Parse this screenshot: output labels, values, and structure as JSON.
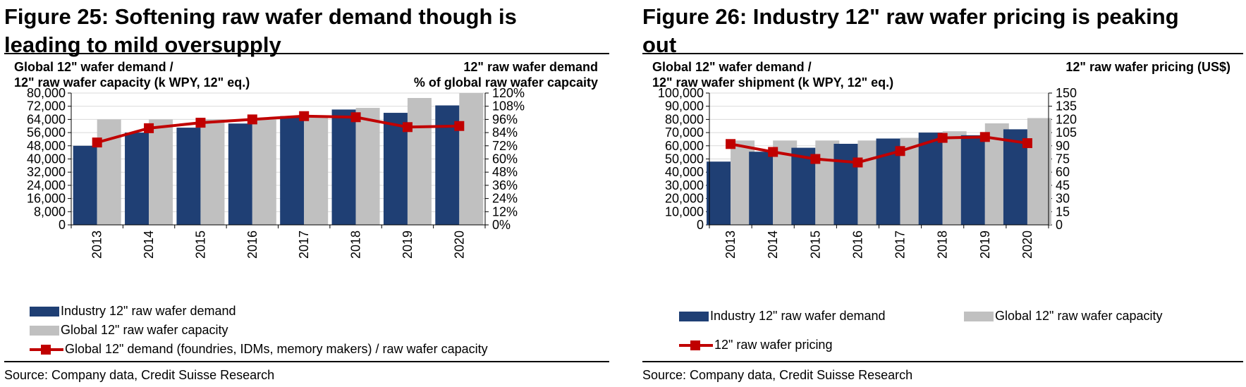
{
  "figures": [
    {
      "title_line1": "Figure 25: Softening raw wafer demand though is",
      "title_line2": "leading to mild oversupply",
      "left_axis_title_line1": "Global 12\" wafer demand /",
      "left_axis_title_line2": "12\" raw wafer capacity (k WPY, 12\" eq.)",
      "right_axis_title_line1": "12\" raw wafer demand",
      "right_axis_title_line2": "% of global raw wafer capcaity",
      "legend": {
        "demand": "Industry 12\" raw wafer demand",
        "capacity": "Global 12\" raw wafer capacity",
        "line": "Global 12\" demand (foundries, IDMs, memory makers) / raw wafer capacity"
      },
      "source": "Source: Company data, Credit Suisse Research"
    },
    {
      "title_line1": "Figure 26: Industry 12\" raw wafer pricing is peaking",
      "title_line2": "out",
      "left_axis_title_line1": "Global 12\" wafer demand /",
      "left_axis_title_line2": "12\" raw wafer shipment (k WPY, 12\" eq.)",
      "right_axis_title_line1": "12\" raw wafer pricing (US$)",
      "right_axis_title_line2": "",
      "legend": {
        "demand": "Industry 12\" raw wafer demand",
        "capacity": "Global 12\" raw wafer capacity",
        "line": "12\" raw wafer pricing"
      },
      "source": "Source: Company data, Credit Suisse Research"
    }
  ],
  "chart_data": [
    {
      "type": "bar",
      "categories": [
        "2013",
        "2014",
        "2015",
        "2016",
        "2017",
        "2018",
        "2019",
        "2020"
      ],
      "series": [
        {
          "name": "Industry 12\" raw wafer demand",
          "axis": "left",
          "color": "#1f3f74",
          "values": [
            48000,
            56000,
            59000,
            61500,
            66000,
            70000,
            68000,
            72500
          ]
        },
        {
          "name": "Global 12\" raw wafer capacity",
          "axis": "left",
          "color": "#c0c0c0",
          "values": [
            64000,
            64000,
            64000,
            64000,
            66000,
            71000,
            77000,
            80000
          ]
        },
        {
          "name": "Global 12\" demand (foundries, IDMs, memory makers) / raw wafer capacity",
          "type": "line",
          "axis": "right",
          "color": "#c00000",
          "values": [
            75,
            88,
            93,
            96,
            99,
            98,
            89,
            90
          ]
        }
      ],
      "left_axis": {
        "min": 0,
        "max": 80000,
        "step": 8000,
        "format": "thousands",
        "ticks": [
          "0",
          "8,000",
          "16,000",
          "24,000",
          "32,000",
          "40,000",
          "48,000",
          "56,000",
          "64,000",
          "72,000",
          "80,000"
        ]
      },
      "right_axis": {
        "min": 0,
        "max": 120,
        "step": 12,
        "format": "percent",
        "ticks": [
          "0%",
          "12%",
          "24%",
          "36%",
          "48%",
          "60%",
          "72%",
          "84%",
          "96%",
          "108%",
          "120%"
        ]
      },
      "grid": true,
      "legend_position": "bottom-left"
    },
    {
      "type": "bar",
      "categories": [
        "2013",
        "2014",
        "2015",
        "2016",
        "2017",
        "2018",
        "2019",
        "2020"
      ],
      "series": [
        {
          "name": "Industry 12\" raw wafer demand",
          "axis": "left",
          "color": "#1f3f74",
          "values": [
            48000,
            55500,
            58500,
            61500,
            65500,
            70000,
            68000,
            72500
          ]
        },
        {
          "name": "Global 12\" raw wafer capacity",
          "axis": "left",
          "color": "#c0c0c0",
          "values": [
            64000,
            64000,
            64000,
            64000,
            66000,
            71000,
            77000,
            81000
          ]
        },
        {
          "name": "12\" raw wafer pricing",
          "type": "line",
          "axis": "right",
          "color": "#c00000",
          "values": [
            92,
            83,
            75,
            71,
            84,
            99,
            100,
            93
          ]
        }
      ],
      "left_axis": {
        "min": 0,
        "max": 100000,
        "step": 10000,
        "format": "thousands",
        "ticks": [
          "0",
          "10,000",
          "20,000",
          "30,000",
          "40,000",
          "50,000",
          "60,000",
          "70,000",
          "80,000",
          "90,000",
          "100,000"
        ]
      },
      "right_axis": {
        "min": 0,
        "max": 150,
        "step": 15,
        "format": "number",
        "ticks": [
          "0",
          "15",
          "30",
          "45",
          "60",
          "75",
          "90",
          "105",
          "120",
          "135",
          "150"
        ]
      },
      "grid": true,
      "legend_position": "bottom"
    }
  ]
}
